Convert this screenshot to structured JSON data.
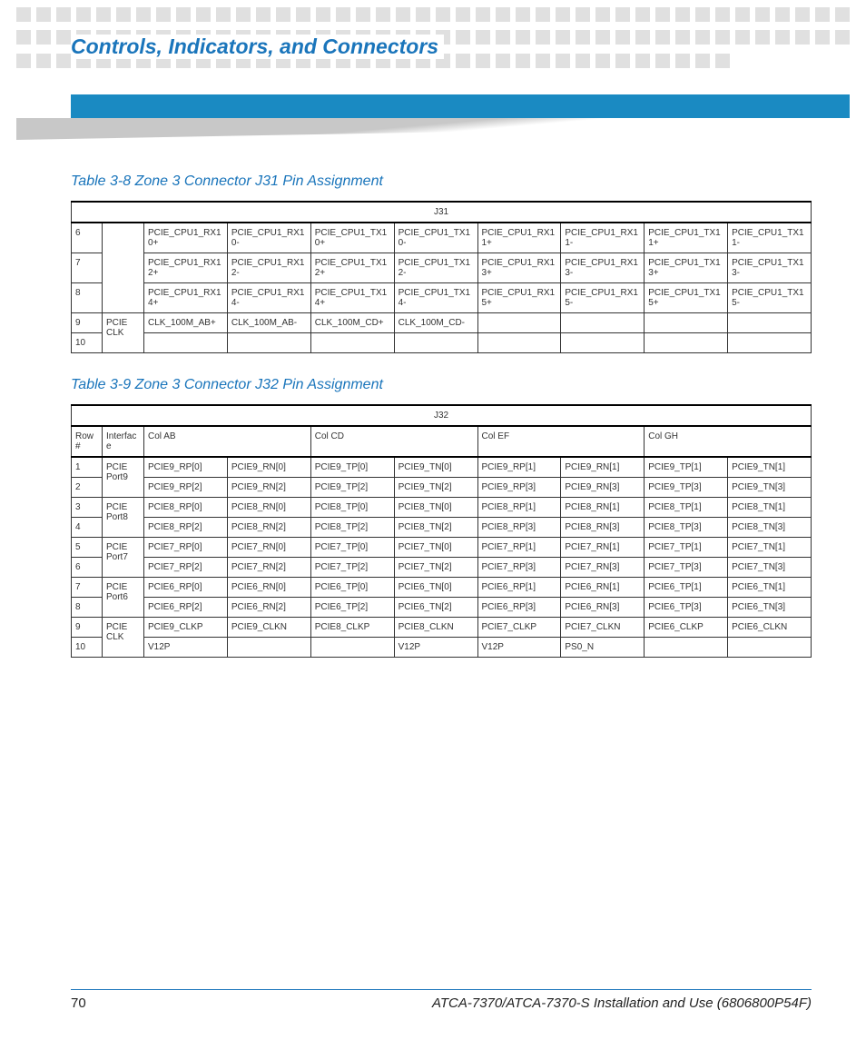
{
  "header": {
    "title": "Controls, Indicators, and Connectors"
  },
  "colors": {
    "accent": "#1a75bb",
    "bar": "#1a8ac2",
    "dot": "#e0e0e0",
    "border": "#333333"
  },
  "table38": {
    "caption": "Table 3-8 Zone 3 Connector J31 Pin Assignment",
    "header_label": "J31",
    "rows": [
      {
        "num": "6",
        "iface": "",
        "cells": [
          "PCIE_CPU1_RX10+",
          "PCIE_CPU1_RX10-",
          "PCIE_CPU1_TX10+",
          "PCIE_CPU1_TX10-",
          "PCIE_CPU1_RX11+",
          "PCIE_CPU1_RX11-",
          "PCIE_CPU1_TX11+",
          "PCIE_CPU1_TX11-"
        ]
      },
      {
        "num": "7",
        "iface": "",
        "cells": [
          "PCIE_CPU1_RX12+",
          "PCIE_CPU1_RX12-",
          "PCIE_CPU1_TX12+",
          "PCIE_CPU1_TX12-",
          "PCIE_CPU1_RX13+",
          "PCIE_CPU1_RX13-",
          "PCIE_CPU1_TX13+",
          "PCIE_CPU1_TX13-"
        ]
      },
      {
        "num": "8",
        "iface": "",
        "cells": [
          "PCIE_CPU1_RX14+",
          "PCIE_CPU1_RX14-",
          "PCIE_CPU1_TX14+",
          "PCIE_CPU1_TX14-",
          "PCIE_CPU1_RX15+",
          "PCIE_CPU1_RX15-",
          "PCIE_CPU1_TX15+",
          "PCIE_CPU1_TX15-"
        ]
      },
      {
        "num": "9",
        "iface": "PCIE CLK",
        "cells": [
          "CLK_100M_AB+",
          "CLK_100M_AB-",
          "CLK_100M_CD+",
          "CLK_100M_CD-",
          "",
          "",
          "",
          ""
        ]
      },
      {
        "num": "10",
        "iface": "",
        "cells": [
          "",
          "",
          "",
          "",
          "",
          "",
          "",
          ""
        ]
      }
    ]
  },
  "table39": {
    "caption": "Table 3-9 Zone 3 Connector J32 Pin Assignment",
    "header_label": "J32",
    "col_headers": [
      "Row #",
      "Interface",
      "Col AB",
      "Col CD",
      "Col EF",
      "Col GH"
    ],
    "groups": [
      {
        "iface": "PCIE Port9",
        "rows": [
          {
            "num": "1",
            "cells": [
              "PCIE9_RP[0]",
              "PCIE9_RN[0]",
              "PCIE9_TP[0]",
              "PCIE9_TN[0]",
              "PCIE9_RP[1]",
              "PCIE9_RN[1]",
              "PCIE9_TP[1]",
              "PCIE9_TN[1]"
            ]
          },
          {
            "num": "2",
            "cells": [
              "PCIE9_RP[2]",
              "PCIE9_RN[2]",
              "PCIE9_TP[2]",
              "PCIE9_TN[2]",
              "PCIE9_RP[3]",
              "PCIE9_RN[3]",
              "PCIE9_TP[3]",
              "PCIE9_TN[3]"
            ]
          }
        ]
      },
      {
        "iface": "PCIE Port8",
        "rows": [
          {
            "num": "3",
            "cells": [
              "PCIE8_RP[0]",
              "PCIE8_RN[0]",
              "PCIE8_TP[0]",
              "PCIE8_TN[0]",
              "PCIE8_RP[1]",
              "PCIE8_RN[1]",
              "PCIE8_TP[1]",
              "PCIE8_TN[1]"
            ]
          },
          {
            "num": "4",
            "cells": [
              "PCIE8_RP[2]",
              "PCIE8_RN[2]",
              "PCIE8_TP[2]",
              "PCIE8_TN[2]",
              "PCIE8_RP[3]",
              "PCIE8_RN[3]",
              "PCIE8_TP[3]",
              "PCIE8_TN[3]"
            ]
          }
        ]
      },
      {
        "iface": "PCIE Port7",
        "rows": [
          {
            "num": "5",
            "cells": [
              "PCIE7_RP[0]",
              "PCIE7_RN[0]",
              "PCIE7_TP[0]",
              "PCIE7_TN[0]",
              "PCIE7_RP[1]",
              "PCIE7_RN[1]",
              "PCIE7_TP[1]",
              "PCIE7_TN[1]"
            ]
          },
          {
            "num": "6",
            "cells": [
              "PCIE7_RP[2]",
              "PCIE7_RN[2]",
              "PCIE7_TP[2]",
              "PCIE7_TN[2]",
              "PCIE7_RP[3]",
              "PCIE7_RN[3]",
              "PCIE7_TP[3]",
              "PCIE7_TN[3]"
            ]
          }
        ]
      },
      {
        "iface": "PCIE Port6",
        "rows": [
          {
            "num": "7",
            "cells": [
              "PCIE6_RP[0]",
              "PCIE6_RN[0]",
              "PCIE6_TP[0]",
              "PCIE6_TN[0]",
              "PCIE6_RP[1]",
              "PCIE6_RN[1]",
              "PCIE6_TP[1]",
              "PCIE6_TN[1]"
            ]
          },
          {
            "num": "8",
            "cells": [
              "PCIE6_RP[2]",
              "PCIE6_RN[2]",
              "PCIE6_TP[2]",
              "PCIE6_TN[2]",
              "PCIE6_RP[3]",
              "PCIE6_RN[3]",
              "PCIE6_TP[3]",
              "PCIE6_TN[3]"
            ]
          }
        ]
      },
      {
        "iface": "PCIE CLK",
        "rows": [
          {
            "num": "9",
            "cells": [
              "PCIE9_CLKP",
              "PCIE9_CLKN",
              "PCIE8_CLKP",
              "PCIE8_CLKN",
              "PCIE7_CLKP",
              "PCIE7_CLKN",
              "PCIE6_CLKP",
              "PCIE6_CLKN"
            ]
          },
          {
            "num": "10",
            "cells": [
              "V12P",
              "",
              "",
              "V12P",
              "V12P",
              "PS0_N",
              "",
              ""
            ]
          }
        ]
      }
    ]
  },
  "footer": {
    "page": "70",
    "docid": "ATCA-7370/ATCA-7370-S Installation and Use (6806800P54F)"
  }
}
